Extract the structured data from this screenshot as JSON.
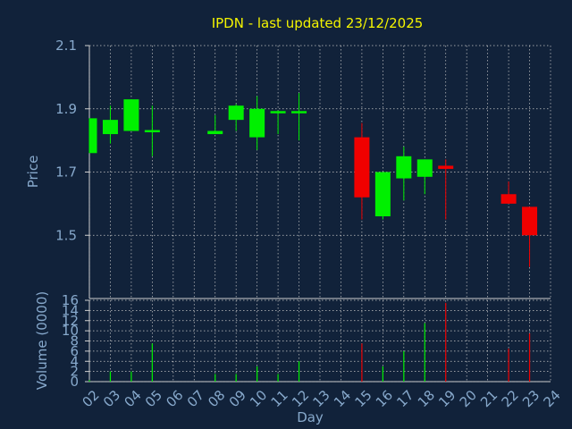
{
  "chart_data": [
    {
      "type": "candlestick",
      "title": "IPDN - last updated 23/12/2025",
      "ylabel": "Price",
      "ylim": [
        1.3,
        2.1
      ],
      "yticks": [
        1.5,
        1.7,
        1.9,
        2.1
      ],
      "ytick_labels": [
        "1.5",
        "1.7",
        "1.9",
        "2.1"
      ],
      "grid": true,
      "colors": {
        "background": "#11223a",
        "title": "#f4f400",
        "axis_text": "#87a9cc",
        "grid": "#c8c8c8",
        "up": "#00f000",
        "down": "#f00000"
      },
      "candles": [
        {
          "day": "02",
          "open": 1.76,
          "high": 1.87,
          "low": 1.76,
          "close": 1.87
        },
        {
          "day": "03",
          "open": 1.82,
          "high": 1.91,
          "low": 1.79,
          "close": 1.865
        },
        {
          "day": "04",
          "open": 1.83,
          "high": 1.93,
          "low": 1.83,
          "close": 1.93
        },
        {
          "day": "05",
          "open": 1.83,
          "high": 1.91,
          "low": 1.75,
          "close": 1.83
        },
        {
          "day": "08",
          "open": 1.82,
          "high": 1.88,
          "low": 1.82,
          "close": 1.83
        },
        {
          "day": "09",
          "open": 1.865,
          "high": 1.915,
          "low": 1.83,
          "close": 1.91
        },
        {
          "day": "10",
          "open": 1.81,
          "high": 1.94,
          "low": 1.77,
          "close": 1.9
        },
        {
          "day": "11",
          "open": 1.885,
          "high": 1.895,
          "low": 1.82,
          "close": 1.89
        },
        {
          "day": "12",
          "open": 1.885,
          "high": 1.95,
          "low": 1.8,
          "close": 1.89
        },
        {
          "day": "15",
          "open": 1.81,
          "high": 1.855,
          "low": 1.55,
          "close": 1.62
        },
        {
          "day": "16",
          "open": 1.56,
          "high": 1.7,
          "low": 1.55,
          "close": 1.7
        },
        {
          "day": "17",
          "open": 1.68,
          "high": 1.78,
          "low": 1.61,
          "close": 1.75
        },
        {
          "day": "18",
          "open": 1.685,
          "high": 1.74,
          "low": 1.63,
          "close": 1.74
        },
        {
          "day": "19",
          "open": 1.72,
          "high": 1.74,
          "low": 1.55,
          "close": 1.71
        },
        {
          "day": "22",
          "open": 1.63,
          "high": 1.67,
          "low": 1.6,
          "close": 1.6
        },
        {
          "day": "23",
          "open": 1.59,
          "high": 1.59,
          "low": 1.4,
          "close": 1.5
        }
      ]
    },
    {
      "type": "bar",
      "ylabel": "Volume (0000)",
      "xlabel": "Day",
      "ylim": [
        0,
        16
      ],
      "yticks": [
        0,
        2,
        4,
        6,
        8,
        10,
        12,
        14,
        16
      ],
      "ytick_labels": [
        "0",
        "2",
        "4",
        "6",
        "8",
        "10",
        "12",
        "14",
        "16"
      ],
      "categories": [
        "02",
        "03",
        "04",
        "05",
        "06",
        "07",
        "08",
        "09",
        "10",
        "11",
        "12",
        "13",
        "14",
        "15",
        "16",
        "17",
        "18",
        "19",
        "20",
        "21",
        "22",
        "23",
        "24"
      ],
      "values": [
        0.3,
        2.0,
        2.0,
        7.5,
        0,
        0,
        1.5,
        1.5,
        3.0,
        1.5,
        4.0,
        0,
        0,
        7.5,
        3.0,
        6.0,
        11.5,
        15.5,
        0,
        0,
        6.5,
        9.5,
        0
      ],
      "bar_colors": [
        "up",
        "up",
        "up",
        "up",
        "up",
        "up",
        "up",
        "up",
        "up",
        "up",
        "up",
        "up",
        "up",
        "down",
        "up",
        "up",
        "up",
        "down",
        "up",
        "up",
        "down",
        "down",
        "up"
      ]
    }
  ]
}
